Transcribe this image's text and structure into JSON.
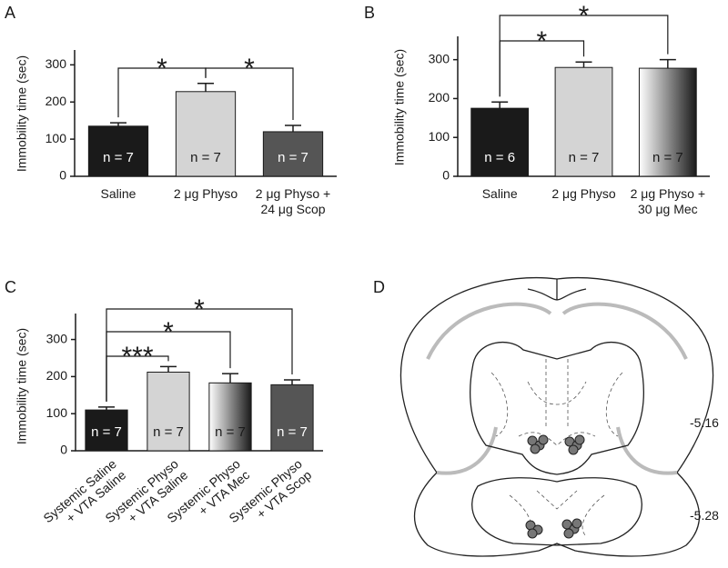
{
  "chart_data": [
    {
      "type": "bar",
      "panel": "A",
      "ylabel": "Immobility time (sec)",
      "categories": [
        [
          "Saline"
        ],
        [
          "2 μg Physo"
        ],
        [
          "2 μg Physo +",
          "24 μg Scop"
        ]
      ],
      "values": [
        135,
        228,
        120
      ],
      "errors": [
        9,
        22,
        17
      ],
      "n_labels": [
        "n = 7",
        "n = 7",
        "n = 7"
      ],
      "colors": [
        "#1a1a1a",
        "#d4d4d4",
        "#555555"
      ],
      "label_colors": [
        "#ffffff",
        "#1a1a1a",
        "#ffffff"
      ],
      "ylim": [
        0,
        340
      ],
      "yticks": [
        0,
        100,
        200,
        300
      ],
      "significance": [
        "*",
        "*"
      ]
    },
    {
      "type": "bar",
      "panel": "B",
      "ylabel": "Immobility time (sec)",
      "categories": [
        [
          "Saline"
        ],
        [
          "2 μg Physo"
        ],
        [
          "2 μg Physo +",
          "30 μg Mec"
        ]
      ],
      "values": [
        175,
        280,
        278
      ],
      "errors": [
        16,
        14,
        22
      ],
      "n_labels": [
        "n = 6",
        "n = 7",
        "n = 7"
      ],
      "colors": [
        "#1a1a1a",
        "#d4d4d4",
        [
          "#ffffff",
          "#1a1a1a"
        ]
      ],
      "label_colors": [
        "#ffffff",
        "#1a1a1a",
        "#1a1a1a"
      ],
      "ylim": [
        0,
        360
      ],
      "yticks": [
        0,
        100,
        200,
        300
      ],
      "significance": [
        "*",
        "*"
      ]
    },
    {
      "type": "bar",
      "panel": "C",
      "ylabel": "Immobility time (sec)",
      "categories": [
        [
          "Systemic Saline",
          "+ VTA Saline"
        ],
        [
          "Systemic Physo",
          "+ VTA Saline"
        ],
        [
          "Systemic Physo",
          "+ VTA Mec"
        ],
        [
          "Systemic Physo",
          "+ VTA Scop"
        ]
      ],
      "values": [
        110,
        212,
        183,
        178
      ],
      "errors": [
        8,
        15,
        25,
        13
      ],
      "n_labels": [
        "n = 7",
        "n = 7",
        "n = 7",
        "n = 7"
      ],
      "colors": [
        "#1a1a1a",
        "#d4d4d4",
        [
          "#ffffff",
          "#1a1a1a"
        ],
        "#555555"
      ],
      "label_colors": [
        "#ffffff",
        "#1a1a1a",
        "#1a1a1a",
        "#ffffff"
      ],
      "ylim": [
        0,
        370
      ],
      "yticks": [
        0,
        100,
        200,
        300
      ],
      "significance": [
        "***",
        "*",
        "*"
      ]
    }
  ],
  "diagram": {
    "panel": "D",
    "levels": [
      "-5.16",
      "-5.28"
    ]
  }
}
